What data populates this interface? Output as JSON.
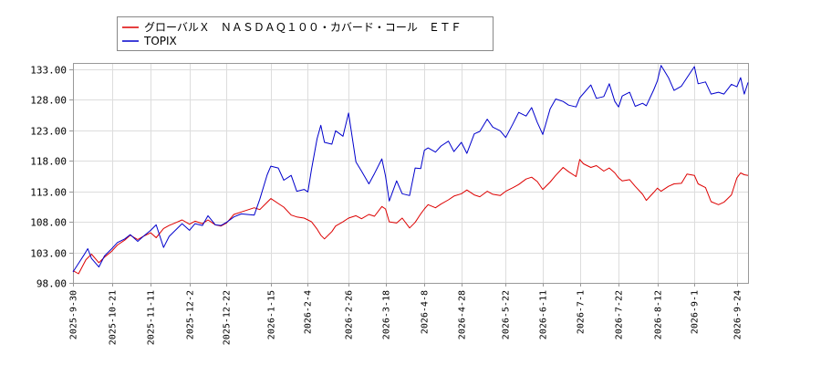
{
  "chart_data": {
    "type": "line",
    "title": "",
    "xlabel": "",
    "ylabel": "",
    "ylim": [
      98,
      134
    ],
    "y_ticks": [
      "98.00",
      "103.00",
      "108.00",
      "113.00",
      "118.00",
      "123.00",
      "128.00",
      "133.00"
    ],
    "x_ticks": [
      "2025-9-30",
      "2025-10-21",
      "2025-11-11",
      "2025-12-2",
      "2025-12-22",
      "2026-1-15",
      "2026-2-4",
      "2026-2-26",
      "2026-3-18",
      "2026-4-8",
      "2026-4-28",
      "2026-5-22",
      "2026-6-11",
      "2026-7-1",
      "2026-7-22",
      "2026-8-12",
      "2026-9-1",
      "2026-9-24"
    ],
    "grid": true,
    "legend_position": "top-left",
    "series": [
      {
        "name": "グローバルＸ　ＮＡＳＤＡＱ１００・カバード・コール　ＥＴＦ",
        "color": "#dd0000",
        "points": [
          [
            "2025-09-30",
            100.0
          ],
          [
            "2025-10-03",
            99.5
          ],
          [
            "2025-10-07",
            101.8
          ],
          [
            "2025-10-10",
            102.7
          ],
          [
            "2025-10-14",
            101.3
          ],
          [
            "2025-10-17",
            102.2
          ],
          [
            "2025-10-21",
            103.2
          ],
          [
            "2025-10-24",
            104.2
          ],
          [
            "2025-10-28",
            105.0
          ],
          [
            "2025-10-31",
            105.8
          ],
          [
            "2025-11-04",
            105.1
          ],
          [
            "2025-11-07",
            105.6
          ],
          [
            "2025-11-11",
            106.2
          ],
          [
            "2025-11-14",
            105.4
          ],
          [
            "2025-11-18",
            106.9
          ],
          [
            "2025-11-21",
            107.4
          ],
          [
            "2025-11-25",
            107.9
          ],
          [
            "2025-11-28",
            108.3
          ],
          [
            "2025-12-02",
            107.6
          ],
          [
            "2025-12-05",
            108.1
          ],
          [
            "2025-12-09",
            107.7
          ],
          [
            "2025-12-12",
            108.3
          ],
          [
            "2025-12-16",
            107.5
          ],
          [
            "2025-12-19",
            107.3
          ],
          [
            "2025-12-22",
            107.8
          ],
          [
            "2025-12-26",
            109.2
          ],
          [
            "2025-12-30",
            109.6
          ],
          [
            "2026-01-06",
            110.3
          ],
          [
            "2026-01-09",
            110.0
          ],
          [
            "2026-01-13",
            111.2
          ],
          [
            "2026-01-15",
            111.8
          ],
          [
            "2026-01-19",
            111.0
          ],
          [
            "2026-01-22",
            110.4
          ],
          [
            "2026-01-26",
            109.1
          ],
          [
            "2026-01-29",
            108.8
          ],
          [
            "2026-02-02",
            108.6
          ],
          [
            "2026-02-04",
            108.3
          ],
          [
            "2026-02-06",
            108.0
          ],
          [
            "2026-02-09",
            106.8
          ],
          [
            "2026-02-11",
            105.8
          ],
          [
            "2026-02-13",
            105.2
          ],
          [
            "2026-02-17",
            106.4
          ],
          [
            "2026-02-19",
            107.3
          ],
          [
            "2026-02-23",
            108.0
          ],
          [
            "2026-02-26",
            108.6
          ],
          [
            "2026-03-02",
            109.0
          ],
          [
            "2026-03-05",
            108.5
          ],
          [
            "2026-03-09",
            109.2
          ],
          [
            "2026-03-12",
            108.9
          ],
          [
            "2026-03-16",
            110.5
          ],
          [
            "2026-03-18",
            110.1
          ],
          [
            "2026-03-20",
            108.0
          ],
          [
            "2026-03-24",
            107.8
          ],
          [
            "2026-03-27",
            108.6
          ],
          [
            "2026-03-31",
            107.0
          ],
          [
            "2026-04-03",
            107.9
          ],
          [
            "2026-04-06",
            109.3
          ],
          [
            "2026-04-08",
            110.1
          ],
          [
            "2026-04-10",
            110.8
          ],
          [
            "2026-04-14",
            110.3
          ],
          [
            "2026-04-17",
            110.9
          ],
          [
            "2026-04-21",
            111.6
          ],
          [
            "2026-04-24",
            112.2
          ],
          [
            "2026-04-28",
            112.6
          ],
          [
            "2026-05-01",
            113.2
          ],
          [
            "2026-05-05",
            112.4
          ],
          [
            "2026-05-08",
            112.1
          ],
          [
            "2026-05-12",
            113.0
          ],
          [
            "2026-05-15",
            112.5
          ],
          [
            "2026-05-19",
            112.3
          ],
          [
            "2026-05-22",
            113.0
          ],
          [
            "2026-05-26",
            113.6
          ],
          [
            "2026-05-29",
            114.1
          ],
          [
            "2026-06-02",
            115.0
          ],
          [
            "2026-06-05",
            115.3
          ],
          [
            "2026-06-08",
            114.6
          ],
          [
            "2026-06-11",
            113.3
          ],
          [
            "2026-06-15",
            114.5
          ],
          [
            "2026-06-18",
            115.6
          ],
          [
            "2026-06-22",
            116.9
          ],
          [
            "2026-06-25",
            116.2
          ],
          [
            "2026-06-29",
            115.4
          ],
          [
            "2026-07-01",
            118.2
          ],
          [
            "2026-07-03",
            117.5
          ],
          [
            "2026-07-07",
            116.9
          ],
          [
            "2026-07-10",
            117.2
          ],
          [
            "2026-07-14",
            116.3
          ],
          [
            "2026-07-17",
            116.8
          ],
          [
            "2026-07-20",
            116.0
          ],
          [
            "2026-07-22",
            115.2
          ],
          [
            "2026-07-24",
            114.7
          ],
          [
            "2026-07-28",
            114.9
          ],
          [
            "2026-07-31",
            113.8
          ],
          [
            "2026-08-04",
            112.5
          ],
          [
            "2026-08-06",
            111.5
          ],
          [
            "2026-08-10",
            112.8
          ],
          [
            "2026-08-12",
            113.5
          ],
          [
            "2026-08-14",
            113.0
          ],
          [
            "2026-08-18",
            113.8
          ],
          [
            "2026-08-21",
            114.2
          ],
          [
            "2026-08-25",
            114.3
          ],
          [
            "2026-08-28",
            115.8
          ],
          [
            "2026-09-01",
            115.6
          ],
          [
            "2026-09-03",
            114.2
          ],
          [
            "2026-09-07",
            113.6
          ],
          [
            "2026-09-10",
            111.3
          ],
          [
            "2026-09-14",
            110.8
          ],
          [
            "2026-09-17",
            111.2
          ],
          [
            "2026-09-21",
            112.4
          ],
          [
            "2026-09-24",
            115.2
          ],
          [
            "2026-09-26",
            116.0
          ],
          [
            "2026-09-28",
            115.7
          ],
          [
            "2026-09-30",
            115.6
          ]
        ]
      },
      {
        "name": "TOPIX",
        "color": "#0000cc",
        "points": [
          [
            "2025-09-30",
            99.8
          ],
          [
            "2025-10-03",
            101.2
          ],
          [
            "2025-10-06",
            102.6
          ],
          [
            "2025-10-08",
            103.6
          ],
          [
            "2025-10-10",
            102.0
          ],
          [
            "2025-10-14",
            100.6
          ],
          [
            "2025-10-17",
            102.4
          ],
          [
            "2025-10-21",
            103.6
          ],
          [
            "2025-10-24",
            104.6
          ],
          [
            "2025-10-28",
            105.2
          ],
          [
            "2025-10-31",
            105.9
          ],
          [
            "2025-11-04",
            104.8
          ],
          [
            "2025-11-07",
            105.6
          ],
          [
            "2025-11-11",
            106.6
          ],
          [
            "2025-11-14",
            107.5
          ],
          [
            "2025-11-18",
            103.8
          ],
          [
            "2025-11-21",
            105.6
          ],
          [
            "2025-11-25",
            106.8
          ],
          [
            "2025-11-28",
            107.7
          ],
          [
            "2025-12-02",
            106.6
          ],
          [
            "2025-12-05",
            107.7
          ],
          [
            "2025-12-09",
            107.4
          ],
          [
            "2025-12-12",
            109.0
          ],
          [
            "2025-12-16",
            107.5
          ],
          [
            "2025-12-19",
            107.4
          ],
          [
            "2025-12-22",
            107.9
          ],
          [
            "2025-12-26",
            108.8
          ],
          [
            "2025-12-30",
            109.3
          ],
          [
            "2026-01-06",
            109.1
          ],
          [
            "2026-01-09",
            111.7
          ],
          [
            "2026-01-13",
            115.7
          ],
          [
            "2026-01-15",
            117.1
          ],
          [
            "2026-01-19",
            116.8
          ],
          [
            "2026-01-22",
            114.8
          ],
          [
            "2026-01-26",
            115.6
          ],
          [
            "2026-01-29",
            113.0
          ],
          [
            "2026-02-02",
            113.3
          ],
          [
            "2026-02-04",
            112.9
          ],
          [
            "2026-02-06",
            116.6
          ],
          [
            "2026-02-09",
            121.6
          ],
          [
            "2026-02-11",
            123.8
          ],
          [
            "2026-02-13",
            121.0
          ],
          [
            "2026-02-17",
            120.7
          ],
          [
            "2026-02-19",
            122.9
          ],
          [
            "2026-02-23",
            122.0
          ],
          [
            "2026-02-26",
            125.8
          ],
          [
            "2026-03-02",
            117.8
          ],
          [
            "2026-03-05",
            116.3
          ],
          [
            "2026-03-09",
            114.2
          ],
          [
            "2026-03-12",
            115.9
          ],
          [
            "2026-03-16",
            118.3
          ],
          [
            "2026-03-18",
            115.5
          ],
          [
            "2026-03-20",
            111.4
          ],
          [
            "2026-03-24",
            114.7
          ],
          [
            "2026-03-27",
            112.6
          ],
          [
            "2026-03-31",
            112.3
          ],
          [
            "2026-04-03",
            116.8
          ],
          [
            "2026-04-06",
            116.7
          ],
          [
            "2026-04-08",
            119.7
          ],
          [
            "2026-04-10",
            120.1
          ],
          [
            "2026-04-14",
            119.4
          ],
          [
            "2026-04-17",
            120.4
          ],
          [
            "2026-04-21",
            121.2
          ],
          [
            "2026-04-24",
            119.5
          ],
          [
            "2026-04-28",
            121.0
          ],
          [
            "2026-05-01",
            119.2
          ],
          [
            "2026-05-05",
            122.4
          ],
          [
            "2026-05-08",
            122.8
          ],
          [
            "2026-05-12",
            124.8
          ],
          [
            "2026-05-15",
            123.5
          ],
          [
            "2026-05-19",
            122.9
          ],
          [
            "2026-05-22",
            121.8
          ],
          [
            "2026-05-26",
            124.1
          ],
          [
            "2026-05-29",
            125.9
          ],
          [
            "2026-06-02",
            125.3
          ],
          [
            "2026-06-05",
            126.7
          ],
          [
            "2026-06-08",
            124.3
          ],
          [
            "2026-06-11",
            122.3
          ],
          [
            "2026-06-15",
            126.5
          ],
          [
            "2026-06-18",
            128.1
          ],
          [
            "2026-06-22",
            127.7
          ],
          [
            "2026-06-25",
            127.1
          ],
          [
            "2026-06-29",
            126.8
          ],
          [
            "2026-07-01",
            128.3
          ],
          [
            "2026-07-03",
            129.0
          ],
          [
            "2026-07-07",
            130.4
          ],
          [
            "2026-07-10",
            128.2
          ],
          [
            "2026-07-14",
            128.5
          ],
          [
            "2026-07-17",
            130.6
          ],
          [
            "2026-07-20",
            127.7
          ],
          [
            "2026-07-22",
            126.8
          ],
          [
            "2026-07-24",
            128.6
          ],
          [
            "2026-07-28",
            129.2
          ],
          [
            "2026-07-31",
            126.9
          ],
          [
            "2026-08-04",
            127.4
          ],
          [
            "2026-08-06",
            127.0
          ],
          [
            "2026-08-10",
            129.6
          ],
          [
            "2026-08-12",
            131.1
          ],
          [
            "2026-08-14",
            133.6
          ],
          [
            "2026-08-18",
            131.6
          ],
          [
            "2026-08-21",
            129.5
          ],
          [
            "2026-08-25",
            130.2
          ],
          [
            "2026-08-28",
            131.6
          ],
          [
            "2026-09-01",
            133.4
          ],
          [
            "2026-09-03",
            130.6
          ],
          [
            "2026-09-07",
            130.9
          ],
          [
            "2026-09-10",
            128.9
          ],
          [
            "2026-09-14",
            129.2
          ],
          [
            "2026-09-17",
            128.9
          ],
          [
            "2026-09-21",
            130.5
          ],
          [
            "2026-09-24",
            130.1
          ],
          [
            "2026-09-26",
            131.6
          ],
          [
            "2026-09-28",
            128.9
          ],
          [
            "2026-09-30",
            130.8
          ]
        ]
      }
    ]
  }
}
